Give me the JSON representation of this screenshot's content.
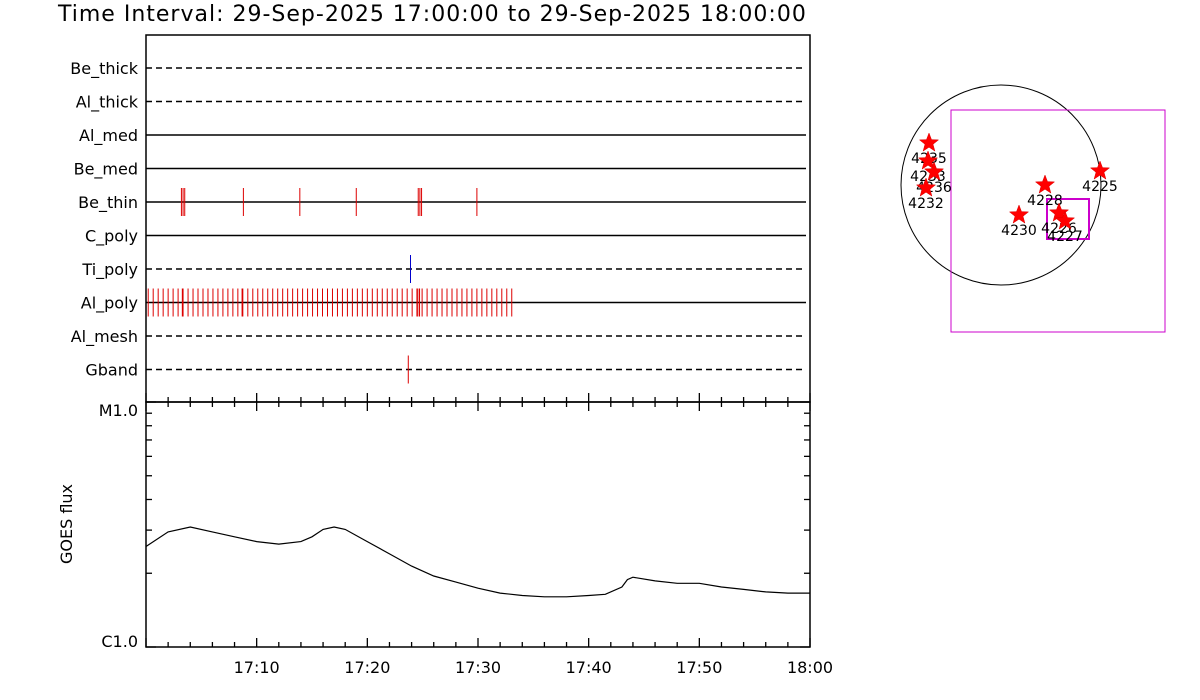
{
  "title": "Time Interval: 29-Sep-2025 17:00:00 to 29-Sep-2025 18:00:00",
  "chart_data": [
    {
      "type": "event-timeline",
      "time_range": [
        "17:00:00",
        "18:00:00"
      ],
      "rows": [
        {
          "label": "Be_thick",
          "line_style": "dashed",
          "events": []
        },
        {
          "label": "Al_thick",
          "line_style": "dashed",
          "events": []
        },
        {
          "label": "Al_med",
          "line_style": "solid",
          "events": []
        },
        {
          "label": "Be_med",
          "line_style": "solid",
          "events": []
        },
        {
          "label": "Be_thin",
          "line_style": "solid",
          "color": "#dd0000",
          "events": [
            3.2,
            3.35,
            3.5,
            8.8,
            13.9,
            19.0,
            24.6,
            24.75,
            24.9,
            29.9
          ]
        },
        {
          "label": "C_poly",
          "line_style": "solid",
          "events": []
        },
        {
          "label": "Ti_poly",
          "line_style": "dashed",
          "color": "#0000cc",
          "events": [
            23.9
          ]
        },
        {
          "label": "Al_poly",
          "line_style": "solid",
          "color": "#dd0000",
          "events": [],
          "event_range": [
            0.2,
            33.4
          ]
        },
        {
          "label": "Al_mesh",
          "line_style": "dashed",
          "events": []
        },
        {
          "label": "Gband",
          "line_style": "dashed",
          "color": "#dd0000",
          "events": [
            23.7
          ]
        }
      ]
    },
    {
      "type": "line",
      "ylabel": "GOES flux",
      "yticks": [
        "M1.0",
        "C1.0"
      ],
      "xticks": [
        "17:10",
        "17:20",
        "17:30",
        "17:40",
        "17:50",
        "18:00"
      ],
      "x_minutes": [
        0,
        2,
        4,
        6,
        8,
        10,
        12,
        14,
        15,
        16,
        17,
        18,
        20,
        22,
        24,
        26,
        28,
        30,
        32,
        34,
        36,
        38,
        40,
        41.5,
        43,
        43.5,
        44,
        46,
        48,
        50,
        52,
        54,
        56,
        58,
        60
      ],
      "y_frac": [
        0.41,
        0.47,
        0.49,
        0.47,
        0.45,
        0.43,
        0.42,
        0.43,
        0.45,
        0.48,
        0.49,
        0.48,
        0.43,
        0.38,
        0.33,
        0.29,
        0.265,
        0.24,
        0.22,
        0.21,
        0.205,
        0.205,
        0.21,
        0.215,
        0.245,
        0.275,
        0.285,
        0.27,
        0.26,
        0.26,
        0.245,
        0.235,
        0.225,
        0.22,
        0.22
      ]
    },
    {
      "type": "scatter",
      "name": "active-region-locator",
      "regions": [
        {
          "label": "4235",
          "x": -0.72,
          "y": 0.42
        },
        {
          "label": "4233",
          "x": -0.73,
          "y": 0.24
        },
        {
          "label": "4236",
          "x": -0.67,
          "y": 0.13
        },
        {
          "label": "4232",
          "x": -0.75,
          "y": -0.03
        },
        {
          "label": "4228",
          "x": 0.44,
          "y": 0.0
        },
        {
          "label": "4225",
          "x": 0.99,
          "y": 0.14
        },
        {
          "label": "4230",
          "x": 0.18,
          "y": -0.3
        },
        {
          "label": "4226",
          "x": 0.58,
          "y": -0.28
        },
        {
          "label": "4227",
          "x": 0.64,
          "y": -0.36
        }
      ]
    }
  ]
}
